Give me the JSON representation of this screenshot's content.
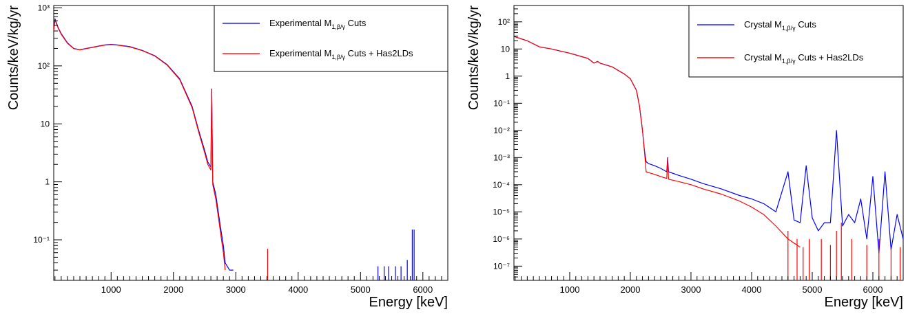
{
  "chart_data": [
    {
      "type": "line",
      "log_y": true,
      "xlabel": "Energy [keV]",
      "ylabel": "Counts/keV/kg/yr",
      "xlim": [
        80,
        6400
      ],
      "ylim": [
        0.02,
        1100
      ],
      "x_ticks": [
        1000,
        2000,
        3000,
        4000,
        5000,
        6000
      ],
      "x_tick_labels": [
        "1000",
        "2000",
        "3000",
        "4000",
        "5000",
        "6000"
      ],
      "y_ticks": [
        0.1,
        1,
        10,
        100,
        1000
      ],
      "y_tick_labels": [
        "10⁻¹",
        "1",
        "10",
        "10²",
        "10³"
      ],
      "legend_position": "top-right",
      "series": [
        {
          "name": "Experimental M1,β/γ Cuts",
          "legend_main": "Experimental M",
          "legend_sub": "1,β/γ",
          "legend_tail": " Cuts",
          "color": "#0000ff",
          "x": [
            80,
            100,
            150,
            200,
            300,
            400,
            500,
            700,
            900,
            1000,
            1100,
            1300,
            1500,
            1700,
            1900,
            2100,
            2300,
            2400,
            2500,
            2550,
            2600,
            2614,
            2630,
            2680,
            2720,
            2760,
            2800,
            2830,
            2900,
            2960
          ],
          "y": [
            420,
            650,
            460,
            360,
            250,
            200,
            190,
            210,
            230,
            235,
            230,
            215,
            185,
            150,
            105,
            60,
            20,
            8,
            3.5,
            2.2,
            1.8,
            40,
            1.0,
            0.6,
            0.3,
            0.15,
            0.08,
            0.04,
            0.03,
            0.03
          ],
          "spikes": [
            [
              5280,
              0.035
            ],
            [
              5380,
              0.035
            ],
            [
              5450,
              0.035
            ],
            [
              5560,
              0.035
            ],
            [
              5650,
              0.035
            ],
            [
              5750,
              0.045
            ],
            [
              5830,
              0.15
            ],
            [
              5860,
              0.15
            ]
          ]
        },
        {
          "name": "Experimental M1,β/γ Cuts + Has2LDs",
          "legend_main": "Experimental M",
          "legend_sub": "1,β/γ",
          "legend_tail": " Cuts + Has2LDs",
          "color": "#ff0000",
          "x": [
            80,
            100,
            150,
            200,
            300,
            400,
            500,
            700,
            900,
            1000,
            1100,
            1300,
            1500,
            1700,
            1900,
            2100,
            2300,
            2400,
            2500,
            2550,
            2600,
            2614,
            2630,
            2680,
            2720,
            2760,
            2800,
            2830
          ],
          "y": [
            410,
            620,
            450,
            350,
            245,
            198,
            188,
            208,
            228,
            232,
            228,
            212,
            183,
            148,
            103,
            58,
            19,
            7.5,
            3.2,
            2.0,
            1.6,
            40,
            0.9,
            0.5,
            0.25,
            0.12,
            0.06,
            0.03
          ],
          "spikes": [
            [
              3510,
              0.07
            ]
          ]
        }
      ]
    },
    {
      "type": "line",
      "log_y": true,
      "xlabel": "Energy [keV]",
      "ylabel": "Counts/keV/kg/yr",
      "xlim": [
        80,
        6500
      ],
      "ylim": [
        3e-08,
        400
      ],
      "x_ticks": [
        1000,
        2000,
        3000,
        4000,
        5000,
        6000
      ],
      "x_tick_labels": [
        "1000",
        "2000",
        "3000",
        "4000",
        "5000",
        "6000"
      ],
      "y_ticks": [
        1e-07,
        1e-06,
        1e-05,
        0.0001,
        0.001,
        0.01,
        0.1,
        1,
        10,
        100
      ],
      "y_tick_labels": [
        "10⁻⁷",
        "10⁻⁶",
        "10⁻⁵",
        "10⁻⁴",
        "10⁻³",
        "10⁻²",
        "10⁻¹",
        "1",
        "10",
        "10²"
      ],
      "legend_position": "top-right",
      "series": [
        {
          "name": "Crystal M1,β/γ Cuts",
          "legend_main": "Crystal M",
          "legend_sub": "1,β/γ",
          "legend_tail": " Cuts",
          "color": "#0000ff",
          "x": [
            80,
            100,
            300,
            500,
            700,
            1000,
            1300,
            1400,
            1460,
            1500,
            1700,
            1900,
            2000,
            2100,
            2150,
            2200,
            2230,
            2260,
            2300,
            2400,
            2500,
            2600,
            2615,
            2630,
            2800,
            3000,
            3200,
            3500,
            3800,
            4000,
            4200,
            4400,
            4600,
            4700,
            4800,
            4900,
            5000,
            5100,
            5200,
            5300,
            5400,
            5500,
            5600,
            5700,
            5800,
            5900,
            6000,
            6100,
            6200,
            6300,
            6400,
            6500
          ],
          "y": [
            30,
            28,
            20,
            12,
            10,
            7,
            4.5,
            3.0,
            3.5,
            3.0,
            2.2,
            1.2,
            0.8,
            0.3,
            0.08,
            0.01,
            0.002,
            0.0007,
            0.0006,
            0.0005,
            0.0004,
            0.0003,
            0.001,
            0.0003,
            0.00022,
            0.00016,
            0.00011,
            7e-05,
            4e-05,
            3e-05,
            2e-05,
            1e-05,
            0.0003,
            5e-06,
            4e-06,
            0.0005,
            6e-06,
            2e-06,
            4e-06,
            4e-06,
            0.01,
            3e-06,
            8e-06,
            4e-06,
            3e-05,
            1e-06,
            0.0002,
            3e-07,
            0.0003,
            4e-07,
            8e-06,
            1e-06
          ],
          "spikes": []
        },
        {
          "name": "Crystal M1,β/γ Cuts + Has2LDs",
          "legend_main": "Crystal M",
          "legend_sub": "1,β/γ",
          "legend_tail": " Cuts + Has2LDs",
          "color": "#ff0000",
          "x": [
            80,
            100,
            300,
            500,
            700,
            1000,
            1300,
            1400,
            1460,
            1500,
            1700,
            1900,
            2000,
            2100,
            2150,
            2200,
            2230,
            2260,
            2300,
            2400,
            2500,
            2600,
            2615,
            2630,
            2800,
            3000,
            3200,
            3500,
            3800,
            4000,
            4200,
            4400,
            4600,
            4800
          ],
          "y": [
            30,
            28,
            20,
            12,
            10,
            7,
            4.5,
            3.0,
            3.5,
            3.0,
            2.2,
            1.2,
            0.8,
            0.3,
            0.08,
            0.01,
            0.002,
            0.0003,
            0.00028,
            0.00024,
            0.0002,
            0.00017,
            0.0009,
            0.00016,
            0.00013,
            0.0001,
            7e-05,
            4.5e-05,
            2.5e-05,
            1.5e-05,
            8e-06,
            3e-06,
            1e-06,
            5e-07
          ],
          "spikes": [
            [
              4600,
              2e-06
            ],
            [
              4750,
              1e-06
            ],
            [
              4850,
              5e-07
            ],
            [
              4950,
              1e-06
            ],
            [
              5150,
              1e-06
            ],
            [
              5300,
              6e-07
            ],
            [
              5400,
              2e-06
            ],
            [
              5480,
              4e-06
            ],
            [
              5650,
              1e-06
            ],
            [
              5900,
              6e-07
            ],
            [
              6100,
              1e-06
            ],
            [
              6300,
              5e-07
            ],
            [
              6450,
              5e-07
            ]
          ]
        }
      ]
    }
  ]
}
